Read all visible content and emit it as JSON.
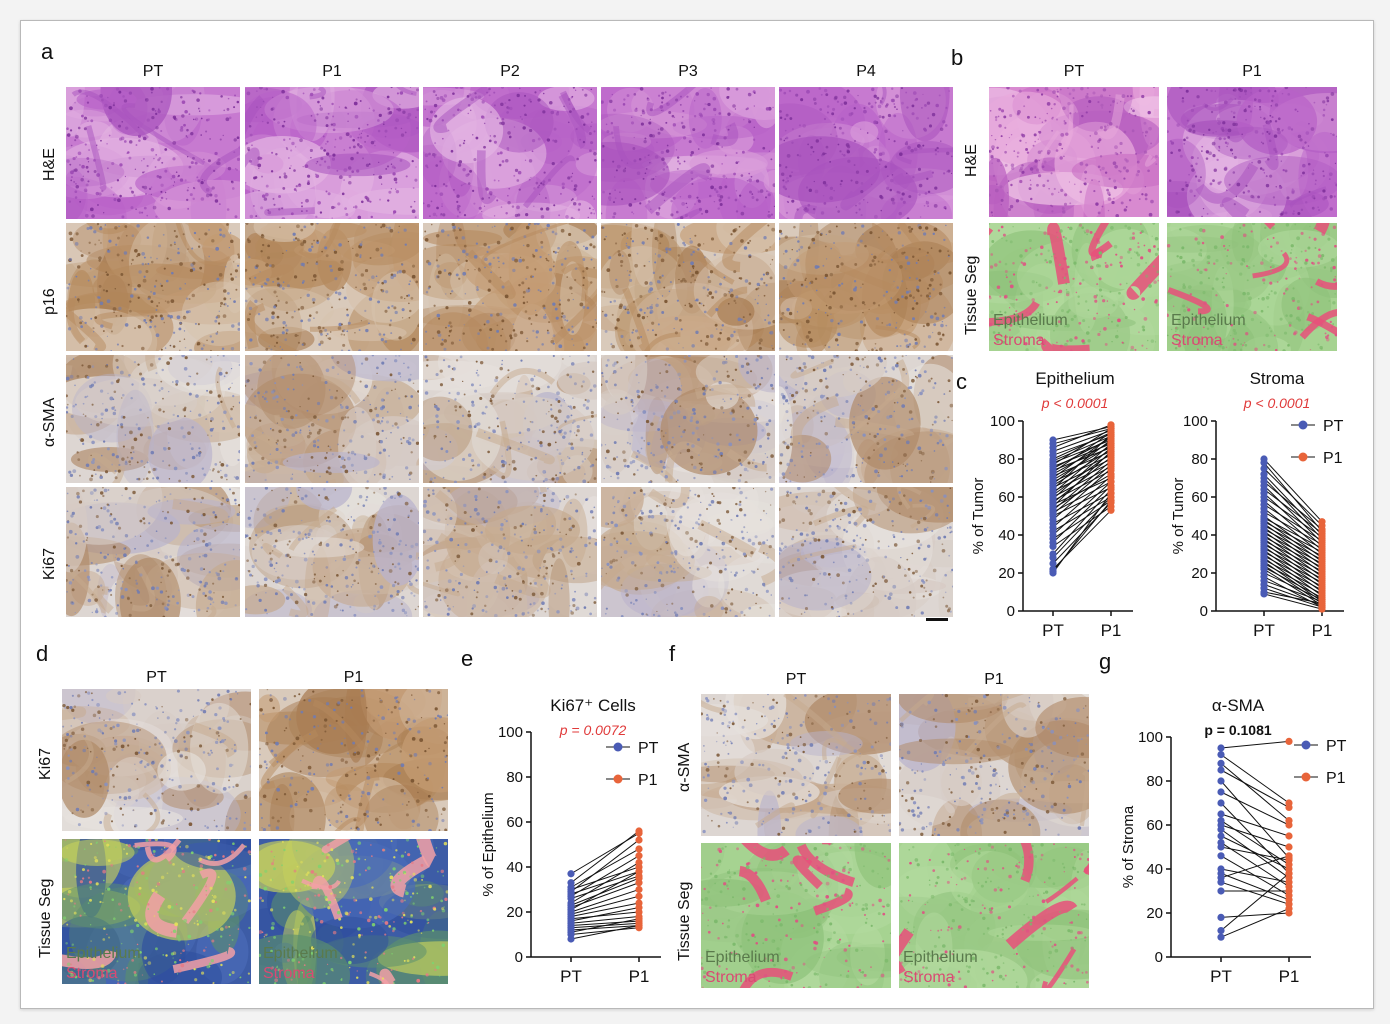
{
  "panel_a": {
    "letter": "a",
    "columns": [
      "PT",
      "P1",
      "P2",
      "P3",
      "P4"
    ],
    "rows": [
      "H&E",
      "p16",
      "α-SMA",
      "Ki67"
    ]
  },
  "panel_b": {
    "letter": "b",
    "columns": [
      "PT",
      "P1"
    ],
    "rows": [
      "H&E",
      "Tissue Seg"
    ],
    "seg_labels": {
      "epithelium": "Epithelium",
      "stroma": "Stroma"
    }
  },
  "panel_c": {
    "letter": "c"
  },
  "panel_d": {
    "letter": "d",
    "columns": [
      "PT",
      "P1"
    ],
    "rows": [
      "Ki67",
      "Tissue Seg"
    ],
    "seg_labels": {
      "epithelium": "Epithelium",
      "stroma": "Stroma"
    }
  },
  "panel_e": {
    "letter": "e"
  },
  "panel_f": {
    "letter": "f",
    "columns": [
      "PT",
      "P1"
    ],
    "rows": [
      "α-SMA",
      "Tissue Seg"
    ],
    "seg_labels": {
      "epithelium": "Epithelium",
      "stroma": "Stroma"
    }
  },
  "panel_g": {
    "letter": "g"
  },
  "colors": {
    "PT": "#4a5bb5",
    "P1": "#e8643a",
    "pvalue_sig": "#e03a3a",
    "epithelium_seg": "#9fd48a",
    "stroma_seg": "#e8507a",
    "he_stain": "#b65fc4",
    "dab": "#a77a4d",
    "hematoxylin": "#8a93c4"
  },
  "chart_data": [
    {
      "id": "c-epithelium",
      "type": "paired_scatter",
      "title": "Epithelium",
      "pvalue": "p < 0.0001",
      "ylabel": "% of Tumor",
      "categories": [
        "PT",
        "P1"
      ],
      "ylim": [
        0,
        100
      ],
      "yticks": [
        0,
        20,
        40,
        60,
        80,
        100
      ],
      "legend": null,
      "pairs": [
        [
          90,
          97
        ],
        [
          88,
          96
        ],
        [
          86,
          98
        ],
        [
          84,
          95
        ],
        [
          82,
          93
        ],
        [
          80,
          94
        ],
        [
          79,
          92
        ],
        [
          78,
          90
        ],
        [
          77,
          96
        ],
        [
          76,
          88
        ],
        [
          75,
          91
        ],
        [
          74,
          86
        ],
        [
          73,
          94
        ],
        [
          72,
          89
        ],
        [
          71,
          84
        ],
        [
          70,
          92
        ],
        [
          69,
          87
        ],
        [
          68,
          82
        ],
        [
          67,
          90
        ],
        [
          66,
          85
        ],
        [
          65,
          80
        ],
        [
          64,
          93
        ],
        [
          63,
          78
        ],
        [
          62,
          88
        ],
        [
          61,
          83
        ],
        [
          60,
          76
        ],
        [
          59,
          86
        ],
        [
          58,
          74
        ],
        [
          57,
          81
        ],
        [
          56,
          70
        ],
        [
          55,
          84
        ],
        [
          54,
          72
        ],
        [
          53,
          79
        ],
        [
          52,
          68
        ],
        [
          51,
          77
        ],
        [
          50,
          65
        ],
        [
          48,
          75
        ],
        [
          46,
          62
        ],
        [
          44,
          71
        ],
        [
          42,
          60
        ],
        [
          40,
          68
        ],
        [
          38,
          58
        ],
        [
          36,
          66
        ],
        [
          34,
          55
        ],
        [
          30,
          64
        ],
        [
          28,
          60
        ],
        [
          25,
          57
        ],
        [
          22,
          53
        ],
        [
          20,
          62
        ],
        [
          21,
          58
        ]
      ]
    },
    {
      "id": "c-stroma",
      "type": "paired_scatter",
      "title": "Stroma",
      "pvalue": "p < 0.0001",
      "ylabel": "% of Tumor",
      "categories": [
        "PT",
        "P1"
      ],
      "ylim": [
        0,
        100
      ],
      "yticks": [
        0,
        20,
        40,
        60,
        80,
        100
      ],
      "legend": {
        "position": "top-right",
        "entries": [
          "PT",
          "P1"
        ]
      },
      "pairs": [
        [
          80,
          47
        ],
        [
          78,
          42
        ],
        [
          75,
          45
        ],
        [
          72,
          40
        ],
        [
          70,
          38
        ],
        [
          68,
          43
        ],
        [
          66,
          36
        ],
        [
          64,
          41
        ],
        [
          62,
          34
        ],
        [
          60,
          39
        ],
        [
          58,
          32
        ],
        [
          56,
          37
        ],
        [
          54,
          30
        ],
        [
          52,
          35
        ],
        [
          50,
          28
        ],
        [
          49,
          33
        ],
        [
          48,
          26
        ],
        [
          47,
          31
        ],
        [
          46,
          24
        ],
        [
          45,
          29
        ],
        [
          44,
          22
        ],
        [
          43,
          27
        ],
        [
          42,
          20
        ],
        [
          41,
          25
        ],
        [
          40,
          18
        ],
        [
          39,
          23
        ],
        [
          38,
          16
        ],
        [
          37,
          21
        ],
        [
          36,
          14
        ],
        [
          35,
          19
        ],
        [
          34,
          12
        ],
        [
          33,
          17
        ],
        [
          32,
          10
        ],
        [
          31,
          15
        ],
        [
          30,
          8
        ],
        [
          29,
          13
        ],
        [
          28,
          6
        ],
        [
          27,
          11
        ],
        [
          26,
          5
        ],
        [
          25,
          9
        ],
        [
          24,
          4
        ],
        [
          23,
          7
        ],
        [
          22,
          3
        ],
        [
          20,
          6
        ],
        [
          18,
          2
        ],
        [
          16,
          5
        ],
        [
          14,
          3
        ],
        [
          12,
          2
        ],
        [
          10,
          4
        ],
        [
          9,
          1
        ]
      ]
    },
    {
      "id": "e-ki67",
      "type": "paired_scatter",
      "title": "Ki67⁺ Cells",
      "pvalue": "p = 0.0072",
      "ylabel": "% of Epithelium",
      "categories": [
        "PT",
        "P1"
      ],
      "ylim": [
        0,
        100
      ],
      "yticks": [
        0,
        20,
        40,
        60,
        80,
        100
      ],
      "legend": {
        "position": "top-right",
        "entries": [
          "PT",
          "P1"
        ]
      },
      "pairs": [
        [
          37,
          55
        ],
        [
          33,
          56
        ],
        [
          31,
          48
        ],
        [
          30,
          40
        ],
        [
          29,
          52
        ],
        [
          28,
          38
        ],
        [
          27,
          45
        ],
        [
          26,
          36
        ],
        [
          24,
          42
        ],
        [
          23,
          35
        ],
        [
          22,
          33
        ],
        [
          21,
          38
        ],
        [
          20,
          30
        ],
        [
          19,
          27
        ],
        [
          18,
          24
        ],
        [
          17,
          20
        ],
        [
          16,
          22
        ],
        [
          15,
          18
        ],
        [
          14,
          16
        ],
        [
          13,
          15
        ],
        [
          12,
          14
        ],
        [
          11,
          17
        ],
        [
          10,
          13
        ],
        [
          8,
          14
        ]
      ]
    },
    {
      "id": "g-asma",
      "type": "paired_scatter",
      "title": "α-SMA",
      "pvalue": "p = 0.1081",
      "ylabel": "% of Stroma",
      "categories": [
        "PT",
        "P1"
      ],
      "ylim": [
        0,
        100
      ],
      "yticks": [
        0,
        20,
        40,
        60,
        80,
        100
      ],
      "legend": {
        "position": "top-right",
        "entries": [
          "PT",
          "P1"
        ]
      },
      "pairs": [
        [
          95,
          98
        ],
        [
          92,
          70
        ],
        [
          88,
          62
        ],
        [
          85,
          68
        ],
        [
          80,
          45
        ],
        [
          75,
          60
        ],
        [
          70,
          38
        ],
        [
          65,
          55
        ],
        [
          62,
          42
        ],
        [
          60,
          50
        ],
        [
          58,
          36
        ],
        [
          55,
          40
        ],
        [
          52,
          32
        ],
        [
          50,
          44
        ],
        [
          46,
          28
        ],
        [
          40,
          34
        ],
        [
          38,
          26
        ],
        [
          36,
          46
        ],
        [
          34,
          24
        ],
        [
          30,
          30
        ],
        [
          18,
          20
        ],
        [
          12,
          38
        ],
        [
          9,
          22
        ]
      ]
    }
  ]
}
